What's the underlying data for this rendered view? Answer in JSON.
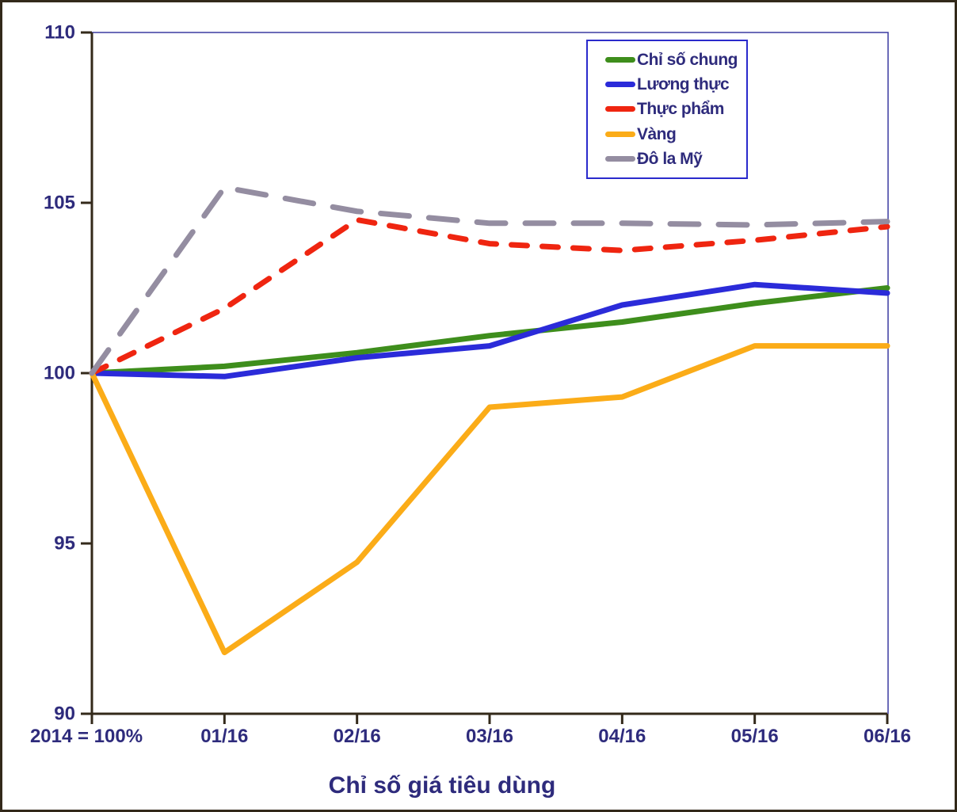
{
  "chart_data": {
    "type": "line",
    "title": "Chỉ số giá tiêu dùng",
    "x_base_note": "2014 = 100%",
    "categories": [
      "2014 = 100%",
      "01/16",
      "02/16",
      "03/16",
      "04/16",
      "05/16",
      "06/16"
    ],
    "yticks": [
      110,
      105,
      100,
      95,
      90
    ],
    "ylim": [
      90,
      110
    ],
    "grid": false,
    "legend_position": "top-right",
    "series": [
      {
        "name": "Chỉ số chung",
        "color": "#3E8E1C",
        "style": "solid",
        "values": [
          100,
          100.2,
          100.6,
          101.1,
          101.5,
          102.05,
          102.5
        ]
      },
      {
        "name": "Lương thực",
        "color": "#2B2BD9",
        "style": "solid",
        "values": [
          100,
          99.9,
          100.45,
          100.8,
          102.0,
          102.6,
          102.35
        ]
      },
      {
        "name": "Thực phẩm",
        "color": "#EF2510",
        "style": "dashed",
        "values": [
          100,
          101.9,
          104.5,
          103.8,
          103.6,
          103.9,
          104.3
        ]
      },
      {
        "name": "Vàng",
        "color": "#FBAC18",
        "style": "solid",
        "values": [
          100,
          91.8,
          94.45,
          99.0,
          99.3,
          100.8,
          100.8
        ]
      },
      {
        "name": "Đô la Mỹ",
        "color": "#948DA1",
        "style": "long-dashed",
        "values": [
          100,
          105.45,
          104.75,
          104.4,
          104.4,
          104.35,
          104.45
        ]
      }
    ],
    "colors": {
      "text": "#2E2B7C",
      "axis": "#33291A",
      "plot_border": "#3A3AA0",
      "legend_border": "#2A2ACC",
      "outer_border": "#33291A",
      "background": "#FFFFFF"
    }
  }
}
